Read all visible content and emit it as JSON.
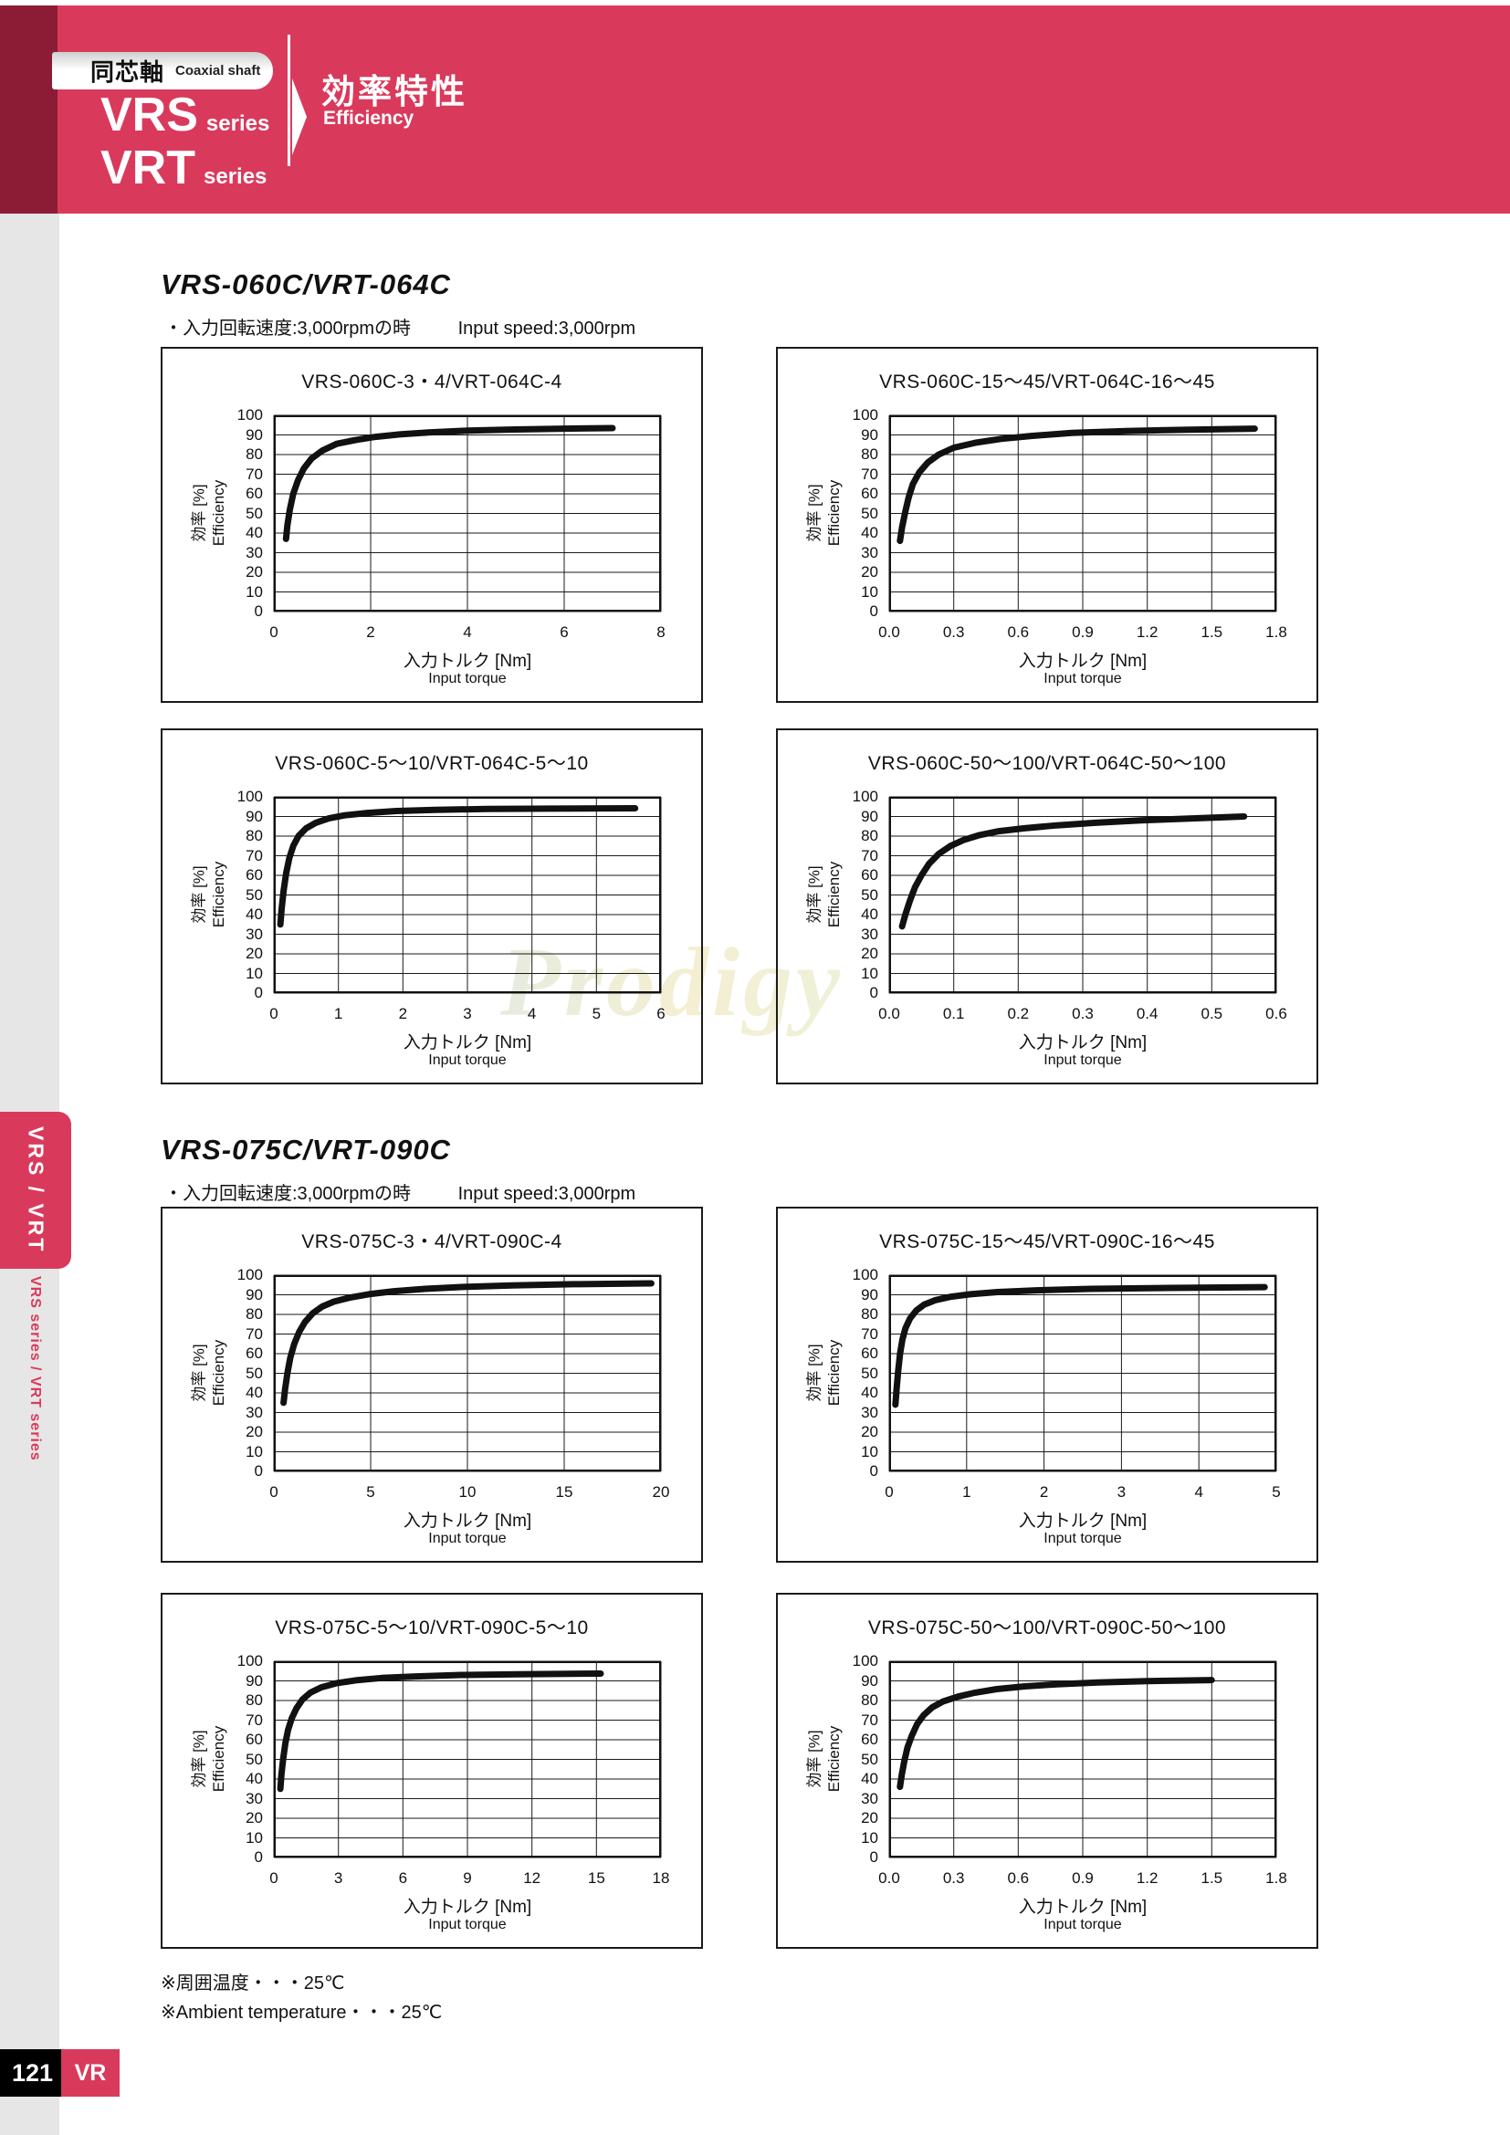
{
  "header": {
    "category_ja": "同芯軸",
    "category_en": "Coaxial shaft",
    "series": [
      {
        "name": "VRS",
        "suffix": "series"
      },
      {
        "name": "VRT",
        "suffix": "series"
      }
    ],
    "title_ja": "効率特性",
    "title_en": "Efficiency"
  },
  "sidebar": {
    "tab_label": "VRS / VRT",
    "series_label": "VRS series / VRT series"
  },
  "sections": [
    {
      "heading": "VRS-060C/VRT-064C",
      "note_ja": "・入力回転速度:3,000rpmの時",
      "note_en": "Input speed:3,000rpm"
    },
    {
      "heading": "VRS-075C/VRT-090C",
      "note_ja": "・入力回転速度:3,000rpmの時",
      "note_en": "Input speed:3,000rpm"
    }
  ],
  "footnotes": [
    "※周囲温度・・・25℃",
    "※Ambient temperature・・・25℃"
  ],
  "footer": {
    "page_number": "121",
    "tab": "VR"
  },
  "watermark": "Prodigy",
  "colors": {
    "accent_red": "#d93a5c",
    "dark_red": "#8c1c35",
    "sidebar_gray": "#e6e6e6",
    "curve_black": "#111111"
  },
  "chart_data": [
    {
      "type": "line",
      "title": "VRS-060C-3・4/VRT-064C-4",
      "xlabel_ja": "入力トルク [Nm]",
      "xlabel_en": "Input torque",
      "ylabel_ja": "効率 [%]",
      "ylabel_en": "Efficiency",
      "xlim": [
        0,
        8
      ],
      "ylim": [
        0,
        100
      ],
      "xticks": [
        0,
        2,
        4,
        6,
        8
      ],
      "xtick_labels": [
        "0",
        "2",
        "4",
        "6",
        "8"
      ],
      "yticks": [
        0,
        10,
        20,
        30,
        40,
        50,
        60,
        70,
        80,
        90,
        100
      ],
      "grid": true,
      "legend": false,
      "series": [
        {
          "name": "efficiency",
          "points": [
            [
              0.25,
              37
            ],
            [
              0.28,
              44
            ],
            [
              0.33,
              52
            ],
            [
              0.4,
              60
            ],
            [
              0.5,
              67
            ],
            [
              0.62,
              73
            ],
            [
              0.78,
              78
            ],
            [
              1.0,
              82
            ],
            [
              1.3,
              85.5
            ],
            [
              1.7,
              87.5
            ],
            [
              2.1,
              89
            ],
            [
              2.6,
              90.3
            ],
            [
              3.2,
              91.3
            ],
            [
              4.0,
              92.2
            ],
            [
              5.0,
              92.8
            ],
            [
              6.0,
              93.2
            ],
            [
              7.0,
              93.5
            ]
          ]
        }
      ]
    },
    {
      "type": "line",
      "title": "VRS-060C-15〜45/VRT-064C-16〜45",
      "xlabel_ja": "入力トルク [Nm]",
      "xlabel_en": "Input torque",
      "ylabel_ja": "効率 [%]",
      "ylabel_en": "Efficiency",
      "xlim": [
        0,
        1.8
      ],
      "ylim": [
        0,
        100
      ],
      "xticks": [
        0,
        0.3,
        0.6,
        0.9,
        1.2,
        1.5,
        1.8
      ],
      "xtick_labels": [
        "0.0",
        "0.3",
        "0.6",
        "0.9",
        "1.2",
        "1.5",
        "1.8"
      ],
      "yticks": [
        0,
        10,
        20,
        30,
        40,
        50,
        60,
        70,
        80,
        90,
        100
      ],
      "grid": true,
      "legend": false,
      "series": [
        {
          "name": "efficiency",
          "points": [
            [
              0.05,
              36
            ],
            [
              0.06,
              43
            ],
            [
              0.075,
              51
            ],
            [
              0.09,
              58
            ],
            [
              0.11,
              65
            ],
            [
              0.14,
              71
            ],
            [
              0.18,
              76
            ],
            [
              0.23,
              80
            ],
            [
              0.3,
              83.5
            ],
            [
              0.4,
              86
            ],
            [
              0.52,
              88
            ],
            [
              0.66,
              89.5
            ],
            [
              0.85,
              91
            ],
            [
              1.1,
              92
            ],
            [
              1.4,
              92.7
            ],
            [
              1.7,
              93.2
            ]
          ]
        }
      ]
    },
    {
      "type": "line",
      "title": "VRS-060C-5〜10/VRT-064C-5〜10",
      "xlabel_ja": "入力トルク [Nm]",
      "xlabel_en": "Input torque",
      "ylabel_ja": "効率 [%]",
      "ylabel_en": "Efficiency",
      "xlim": [
        0,
        6
      ],
      "ylim": [
        0,
        100
      ],
      "xticks": [
        0,
        1,
        2,
        3,
        4,
        5,
        6
      ],
      "xtick_labels": [
        "0",
        "1",
        "2",
        "3",
        "4",
        "5",
        "6"
      ],
      "yticks": [
        0,
        10,
        20,
        30,
        40,
        50,
        60,
        70,
        80,
        90,
        100
      ],
      "grid": true,
      "legend": false,
      "series": [
        {
          "name": "efficiency",
          "points": [
            [
              0.1,
              35
            ],
            [
              0.12,
              43
            ],
            [
              0.15,
              52
            ],
            [
              0.19,
              61
            ],
            [
              0.24,
              69
            ],
            [
              0.3,
              75
            ],
            [
              0.38,
              80
            ],
            [
              0.5,
              84
            ],
            [
              0.65,
              86.8
            ],
            [
              0.85,
              89
            ],
            [
              1.1,
              90.6
            ],
            [
              1.45,
              91.8
            ],
            [
              1.9,
              92.8
            ],
            [
              2.5,
              93.4
            ],
            [
              3.3,
              93.8
            ],
            [
              4.3,
              94
            ],
            [
              5.6,
              94.2
            ]
          ]
        }
      ]
    },
    {
      "type": "line",
      "title": "VRS-060C-50〜100/VRT-064C-50〜100",
      "xlabel_ja": "入力トルク [Nm]",
      "xlabel_en": "Input torque",
      "ylabel_ja": "効率 [%]",
      "ylabel_en": "Efficiency",
      "xlim": [
        0,
        0.6
      ],
      "ylim": [
        0,
        100
      ],
      "xticks": [
        0,
        0.1,
        0.2,
        0.3,
        0.4,
        0.5,
        0.6
      ],
      "xtick_labels": [
        "0.0",
        "0.1",
        "0.2",
        "0.3",
        "0.4",
        "0.5",
        "0.6"
      ],
      "yticks": [
        0,
        10,
        20,
        30,
        40,
        50,
        60,
        70,
        80,
        90,
        100
      ],
      "grid": true,
      "legend": false,
      "series": [
        {
          "name": "efficiency",
          "points": [
            [
              0.02,
              34
            ],
            [
              0.025,
              40
            ],
            [
              0.032,
              47
            ],
            [
              0.04,
              54
            ],
            [
              0.05,
              60
            ],
            [
              0.062,
              66
            ],
            [
              0.077,
              71
            ],
            [
              0.095,
              75
            ],
            [
              0.115,
              78
            ],
            [
              0.14,
              80.5
            ],
            [
              0.17,
              82.5
            ],
            [
              0.21,
              84
            ],
            [
              0.26,
              85.5
            ],
            [
              0.32,
              86.8
            ],
            [
              0.39,
              88
            ],
            [
              0.47,
              89
            ],
            [
              0.55,
              90
            ]
          ]
        }
      ]
    },
    {
      "type": "line",
      "title": "VRS-075C-3・4/VRT-090C-4",
      "xlabel_ja": "入力トルク [Nm]",
      "xlabel_en": "Input torque",
      "ylabel_ja": "効率 [%]",
      "ylabel_en": "Efficiency",
      "xlim": [
        0,
        20
      ],
      "ylim": [
        0,
        100
      ],
      "xticks": [
        0,
        5,
        10,
        15,
        20
      ],
      "xtick_labels": [
        "0",
        "5",
        "10",
        "15",
        "20"
      ],
      "yticks": [
        0,
        10,
        20,
        30,
        40,
        50,
        60,
        70,
        80,
        90,
        100
      ],
      "grid": true,
      "legend": false,
      "series": [
        {
          "name": "efficiency",
          "points": [
            [
              0.5,
              35
            ],
            [
              0.58,
              42
            ],
            [
              0.7,
              50
            ],
            [
              0.85,
              58
            ],
            [
              1.05,
              65
            ],
            [
              1.3,
              71
            ],
            [
              1.6,
              76
            ],
            [
              2.0,
              80.5
            ],
            [
              2.5,
              84
            ],
            [
              3.1,
              86.5
            ],
            [
              3.9,
              88.5
            ],
            [
              4.9,
              90.3
            ],
            [
              6.2,
              91.8
            ],
            [
              7.8,
              93
            ],
            [
              9.8,
              94
            ],
            [
              12.3,
              94.8
            ],
            [
              15.5,
              95.4
            ],
            [
              19.5,
              95.8
            ]
          ]
        }
      ]
    },
    {
      "type": "line",
      "title": "VRS-075C-15〜45/VRT-090C-16〜45",
      "xlabel_ja": "入力トルク [Nm]",
      "xlabel_en": "Input torque",
      "ylabel_ja": "効率 [%]",
      "ylabel_en": "Efficiency",
      "xlim": [
        0,
        5
      ],
      "ylim": [
        0,
        100
      ],
      "xticks": [
        0,
        1,
        2,
        3,
        4,
        5
      ],
      "xtick_labels": [
        "0",
        "1",
        "2",
        "3",
        "4",
        "5"
      ],
      "yticks": [
        0,
        10,
        20,
        30,
        40,
        50,
        60,
        70,
        80,
        90,
        100
      ],
      "grid": true,
      "legend": false,
      "series": [
        {
          "name": "efficiency",
          "points": [
            [
              0.08,
              34
            ],
            [
              0.095,
              42
            ],
            [
              0.115,
              51
            ],
            [
              0.14,
              60
            ],
            [
              0.17,
              67
            ],
            [
              0.21,
              73
            ],
            [
              0.27,
              78
            ],
            [
              0.35,
              82
            ],
            [
              0.45,
              85
            ],
            [
              0.6,
              87.3
            ],
            [
              0.8,
              89
            ],
            [
              1.05,
              90.3
            ],
            [
              1.4,
              91.4
            ],
            [
              1.9,
              92.3
            ],
            [
              2.6,
              93
            ],
            [
              3.6,
              93.5
            ],
            [
              4.85,
              93.9
            ]
          ]
        }
      ]
    },
    {
      "type": "line",
      "title": "VRS-075C-5〜10/VRT-090C-5〜10",
      "xlabel_ja": "入力トルク [Nm]",
      "xlabel_en": "Input torque",
      "ylabel_ja": "効率 [%]",
      "ylabel_en": "Efficiency",
      "xlim": [
        0,
        18
      ],
      "ylim": [
        0,
        100
      ],
      "xticks": [
        0,
        3,
        6,
        9,
        12,
        15,
        18
      ],
      "xtick_labels": [
        "0",
        "3",
        "6",
        "9",
        "12",
        "15",
        "18"
      ],
      "yticks": [
        0,
        10,
        20,
        30,
        40,
        50,
        60,
        70,
        80,
        90,
        100
      ],
      "grid": true,
      "legend": false,
      "series": [
        {
          "name": "efficiency",
          "points": [
            [
              0.3,
              35
            ],
            [
              0.35,
              42
            ],
            [
              0.43,
              50
            ],
            [
              0.53,
              58
            ],
            [
              0.66,
              65
            ],
            [
              0.83,
              71
            ],
            [
              1.05,
              76
            ],
            [
              1.33,
              80.5
            ],
            [
              1.7,
              84
            ],
            [
              2.2,
              86.7
            ],
            [
              2.9,
              88.8
            ],
            [
              3.8,
              90.3
            ],
            [
              5.0,
              91.5
            ],
            [
              6.6,
              92.3
            ],
            [
              8.7,
              93
            ],
            [
              11.4,
              93.4
            ],
            [
              15.2,
              93.7
            ]
          ]
        }
      ]
    },
    {
      "type": "line",
      "title": "VRS-075C-50〜100/VRT-090C-50〜100",
      "xlabel_ja": "入力トルク [Nm]",
      "xlabel_en": "Input torque",
      "ylabel_ja": "効率 [%]",
      "ylabel_en": "Efficiency",
      "xlim": [
        0,
        1.8
      ],
      "ylim": [
        0,
        100
      ],
      "xticks": [
        0,
        0.3,
        0.6,
        0.9,
        1.2,
        1.5,
        1.8
      ],
      "xtick_labels": [
        "0.0",
        "0.3",
        "0.6",
        "0.9",
        "1.2",
        "1.5",
        "1.8"
      ],
      "yticks": [
        0,
        10,
        20,
        30,
        40,
        50,
        60,
        70,
        80,
        90,
        100
      ],
      "grid": true,
      "legend": false,
      "series": [
        {
          "name": "efficiency",
          "points": [
            [
              0.05,
              36
            ],
            [
              0.058,
              42
            ],
            [
              0.07,
              49
            ],
            [
              0.085,
              56
            ],
            [
              0.105,
              62
            ],
            [
              0.13,
              68
            ],
            [
              0.16,
              72.5
            ],
            [
              0.2,
              76.5
            ],
            [
              0.25,
              79.5
            ],
            [
              0.32,
              82
            ],
            [
              0.4,
              84
            ],
            [
              0.5,
              85.8
            ],
            [
              0.63,
              87.2
            ],
            [
              0.78,
              88.3
            ],
            [
              0.97,
              89.2
            ],
            [
              1.2,
              89.9
            ],
            [
              1.5,
              90.4
            ]
          ]
        }
      ]
    }
  ]
}
